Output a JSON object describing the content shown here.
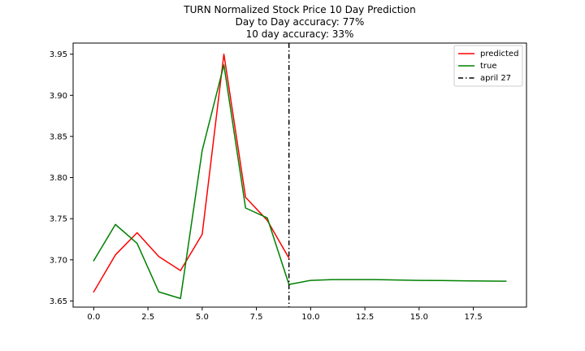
{
  "chart_data": {
    "type": "line",
    "title": "TURN Normalized Stock Price 10 Day Prediction",
    "subtitle_lines": [
      "Day to Day accuracy: 77%",
      "10 day accuracy: 33%"
    ],
    "xlabel": "",
    "ylabel": "",
    "xlim": [
      -0.95,
      19.95
    ],
    "ylim": [
      3.6425,
      3.9635
    ],
    "x_ticks": [
      0.0,
      2.5,
      5.0,
      7.5,
      10.0,
      12.5,
      15.0,
      17.5
    ],
    "x_tick_labels": [
      "0.0",
      "2.5",
      "5.0",
      "7.5",
      "10.0",
      "12.5",
      "15.0",
      "17.5"
    ],
    "y_ticks": [
      3.65,
      3.7,
      3.75,
      3.8,
      3.85,
      3.9,
      3.95
    ],
    "y_tick_labels": [
      "3.65",
      "3.70",
      "3.75",
      "3.80",
      "3.85",
      "3.90",
      "3.95"
    ],
    "grid": false,
    "legend_position": "top-right",
    "series": [
      {
        "name": "predicted",
        "color": "#ff0000",
        "style": "solid",
        "x": [
          0,
          1,
          2,
          3,
          4,
          5,
          6,
          7,
          8,
          9
        ],
        "y": [
          3.661,
          3.706,
          3.733,
          3.704,
          3.687,
          3.731,
          3.95,
          3.776,
          3.748,
          3.702
        ]
      },
      {
        "name": "true",
        "color": "#008000",
        "style": "solid",
        "x": [
          0,
          1,
          2,
          3,
          4,
          5,
          6,
          7,
          8,
          9,
          10,
          11,
          12,
          13,
          14,
          15,
          16,
          17,
          18,
          19
        ],
        "y": [
          3.699,
          3.743,
          3.72,
          3.661,
          3.653,
          3.833,
          3.937,
          3.763,
          3.751,
          3.67,
          3.675,
          3.676,
          3.676,
          3.676,
          3.6755,
          3.675,
          3.6748,
          3.6745,
          3.6742,
          3.674
        ]
      }
    ],
    "vlines": [
      {
        "name": "april 27",
        "x": 9,
        "color": "#000000",
        "style": "dashdot"
      }
    ]
  }
}
